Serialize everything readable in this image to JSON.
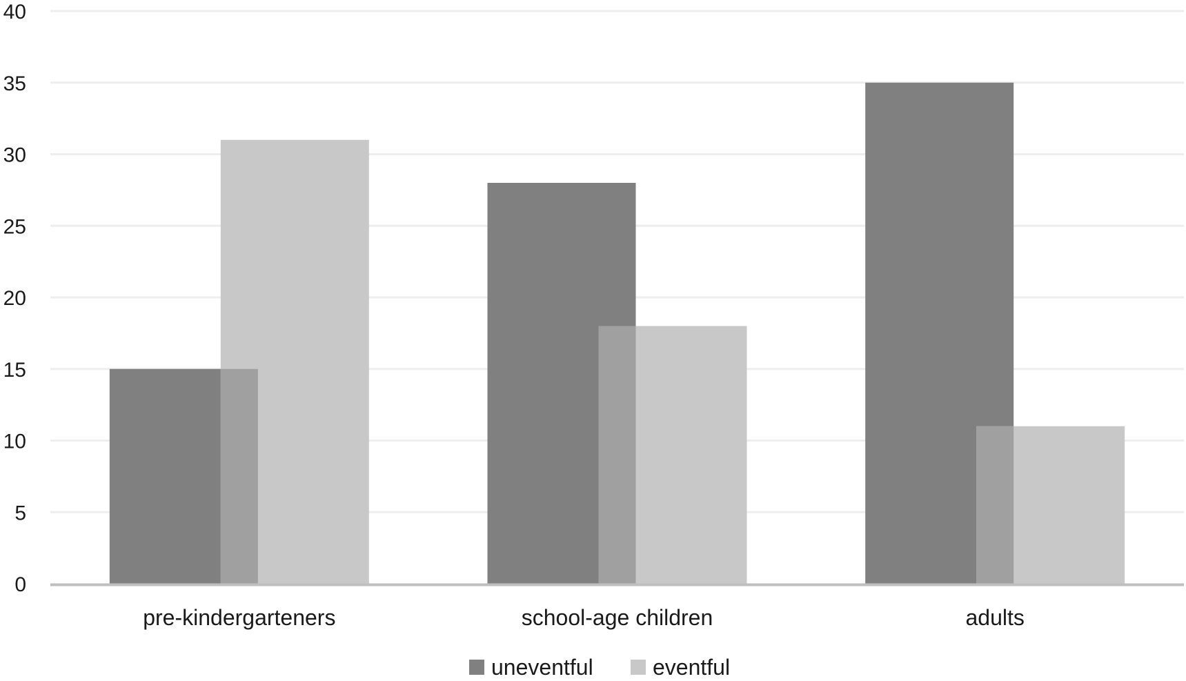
{
  "chart_data": {
    "type": "bar",
    "categories": [
      "pre-kindergarteners",
      "school-age children",
      "adults"
    ],
    "series": [
      {
        "name": "uneventful",
        "values": [
          15,
          28,
          35
        ],
        "color": "#808080"
      },
      {
        "name": "eventful",
        "values": [
          31,
          18,
          11
        ],
        "color": "#c8c8c8"
      }
    ],
    "overlap_color": "#a0a0a0",
    "ylim": [
      0,
      40
    ],
    "yticks": [
      0,
      5,
      10,
      15,
      20,
      25,
      30,
      35,
      40
    ],
    "grid": true,
    "legend_position": "bottom",
    "gridline_color": "#eeeeee",
    "axis_color": "#bfbfbf"
  }
}
